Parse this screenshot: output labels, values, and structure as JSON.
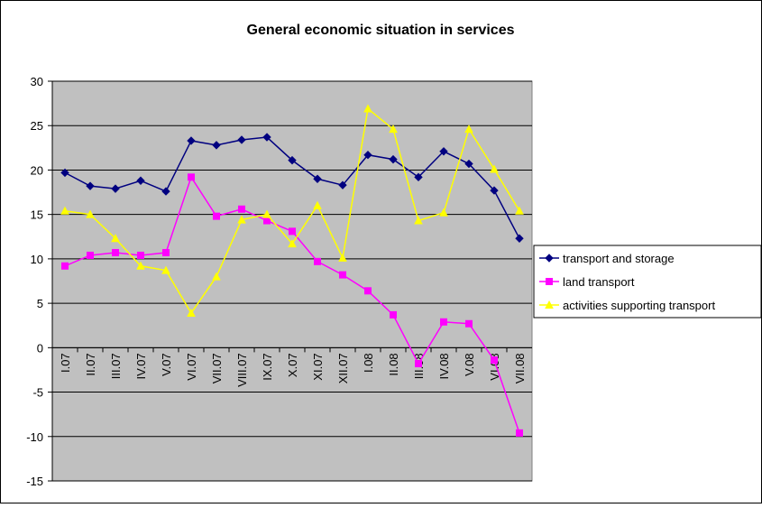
{
  "chart_data": {
    "type": "line",
    "title": "General economic situation in services",
    "categories": [
      "I.07",
      "II.07",
      "III.07",
      "IV.07",
      "V.07",
      "VI.07",
      "VII.07",
      "VIII.07",
      "IX.07",
      "X.07",
      "XI.07",
      "XII.07",
      "I.08",
      "II.08",
      "III.08",
      "IV.08",
      "V.08",
      "VI.08",
      "VII.08"
    ],
    "series": [
      {
        "name": "transport and storage",
        "color": "#000080",
        "marker": "diamond",
        "values": [
          19.7,
          18.2,
          17.9,
          18.8,
          17.6,
          23.3,
          22.8,
          23.4,
          23.7,
          21.1,
          19.0,
          18.3,
          21.7,
          21.2,
          19.2,
          22.1,
          20.7,
          17.7,
          12.3
        ]
      },
      {
        "name": "land transport",
        "color": "#ff00ff",
        "marker": "square",
        "values": [
          9.2,
          10.4,
          10.7,
          10.4,
          10.7,
          19.2,
          14.8,
          15.6,
          14.3,
          13.1,
          9.7,
          8.2,
          6.4,
          3.7,
          -1.8,
          2.9,
          2.7,
          -1.4,
          -9.6
        ]
      },
      {
        "name": "activities supporting transport",
        "color": "#ffff00",
        "marker": "triangle",
        "values": [
          15.4,
          15.0,
          12.3,
          9.2,
          8.7,
          3.9,
          8.0,
          14.4,
          15.0,
          11.7,
          16.0,
          10.1,
          26.9,
          24.6,
          14.3,
          15.2,
          24.6,
          20.1,
          15.4
        ]
      }
    ],
    "ylim": [
      -15,
      30
    ],
    "yticks": [
      -15,
      -10,
      -5,
      0,
      5,
      10,
      15,
      20,
      25,
      30
    ],
    "grid": true,
    "legend": "right",
    "plot_background": "#c0c0c0"
  }
}
